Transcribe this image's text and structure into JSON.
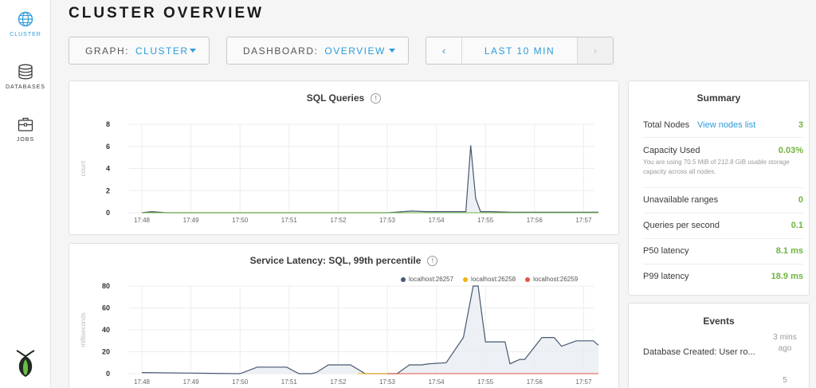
{
  "sidebar": {
    "items": [
      {
        "label": "CLUSTER",
        "icon": "globe-icon",
        "active": true
      },
      {
        "label": "DATABASES",
        "icon": "database-icon",
        "active": false
      },
      {
        "label": "JOBS",
        "icon": "briefcase-icon",
        "active": false
      }
    ],
    "logo": "cockroach-logo-icon"
  },
  "header": {
    "title": "CLUSTER OVERVIEW",
    "graph": {
      "key": "GRAPH:",
      "value": "CLUSTER"
    },
    "dashboard": {
      "key": "DASHBOARD:",
      "value": "OVERVIEW"
    },
    "time_range": {
      "prev": "‹",
      "label": "LAST 10 MIN",
      "next": "›"
    }
  },
  "colors": {
    "accent": "#2d9cdb",
    "positive": "#6eb33f",
    "series": [
      "#475872",
      "#f5b20f",
      "#e8533f"
    ]
  },
  "chart_data": [
    {
      "type": "line",
      "title": "SQL Queries",
      "ylabel": "count",
      "ylim": [
        0,
        8
      ],
      "yticks": [
        0,
        2,
        4,
        6,
        8
      ],
      "xticks": [
        "17:48",
        "17:49",
        "17:50",
        "17:51",
        "17:52",
        "17:53",
        "17:54",
        "17:55",
        "17:56",
        "17:57"
      ],
      "x": [
        0,
        0.2,
        0.5,
        1,
        2,
        3,
        4,
        5,
        5.5,
        5.8,
        6.0,
        6.3,
        6.6,
        6.7,
        6.8,
        6.9,
        7.1,
        7.5,
        8,
        9,
        9.3
      ],
      "series": [
        {
          "values": [
            0,
            0.1,
            0,
            0,
            0,
            0,
            0,
            0,
            0.15,
            0.1,
            0.1,
            0.1,
            0.1,
            6.1,
            1.3,
            0.1,
            0.1,
            0.05,
            0.05,
            0.05,
            0.05
          ]
        }
      ]
    },
    {
      "type": "line",
      "title": "Service Latency: SQL, 99th percentile",
      "ylabel": "milliseconds",
      "ylim": [
        0,
        80
      ],
      "yticks": [
        0,
        20,
        40,
        60,
        80
      ],
      "xticks": [
        "17:48",
        "17:49",
        "17:50",
        "17:51",
        "17:52",
        "17:53",
        "17:54",
        "17:55",
        "17:56",
        "17:57"
      ],
      "series": [
        {
          "name": "localhost:26257",
          "color": "#475872",
          "x": [
            0,
            1,
            2,
            2.35,
            2.55,
            2.95,
            3.2,
            3.45,
            3.55,
            3.8,
            4.1,
            4.25,
            4.55,
            5.2,
            5.45,
            5.7,
            5.85,
            6.2,
            6.55,
            6.75,
            6.85,
            7.0,
            7.1,
            7.4,
            7.5,
            7.7,
            7.8,
            8.15,
            8.4,
            8.55,
            8.85,
            9.2,
            9.3
          ],
          "values": [
            1,
            0.5,
            0,
            6,
            6,
            6,
            0,
            0,
            1,
            8,
            8,
            8,
            0,
            0,
            8,
            8,
            9,
            10,
            33,
            80,
            80,
            29,
            29,
            29,
            9,
            13,
            13,
            33,
            33,
            25,
            30,
            30,
            26
          ]
        },
        {
          "name": "localhost:26258",
          "color": "#f5b20f",
          "x": [
            4.4,
            9.3
          ],
          "values": [
            0,
            0
          ]
        },
        {
          "name": "localhost:26259",
          "color": "#e8533f",
          "x": [
            5.0,
            9.3
          ],
          "values": [
            0,
            0
          ]
        }
      ]
    }
  ],
  "summary": {
    "title": "Summary",
    "rows": [
      {
        "label": "Total Nodes",
        "link": "View nodes list",
        "value": "3"
      },
      {
        "label": "Capacity Used",
        "value": "0.03%",
        "desc": "You are using 70.5 MiB of 212.8 GiB usable storage capacity across all nodes."
      },
      {
        "label": "Unavailable ranges",
        "value": "0"
      },
      {
        "label": "Queries per second",
        "value": "0.1"
      },
      {
        "label": "P50 latency",
        "value": "8.1 ms"
      },
      {
        "label": "P99 latency",
        "value": "18.9 ms"
      }
    ]
  },
  "events": {
    "title": "Events",
    "items": [
      {
        "text": "Database Created: User ro...",
        "time": "3 mins ago"
      },
      {
        "text": "",
        "time": "5"
      }
    ]
  }
}
